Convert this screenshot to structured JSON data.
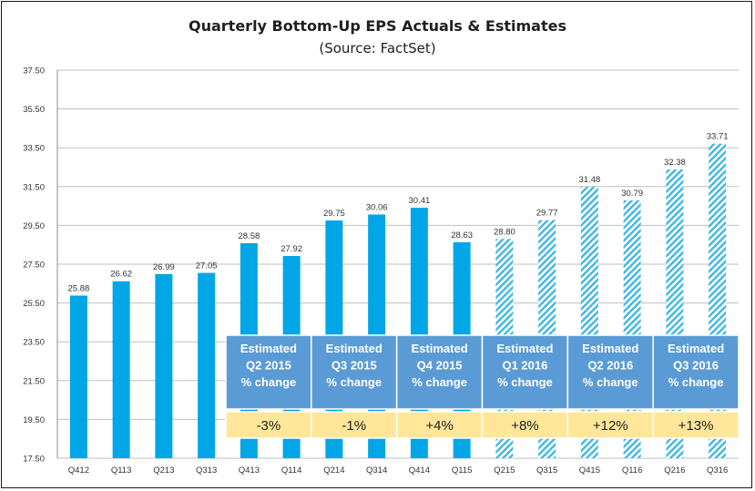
{
  "chart_data": {
    "type": "bar",
    "title": "Quarterly Bottom-Up EPS Actuals & Estimates",
    "subtitle": "(Source: FactSet)",
    "xlabel": "",
    "ylabel": "",
    "ylim": [
      17.5,
      37.5
    ],
    "yticks": [
      "17.50",
      "19.50",
      "21.50",
      "23.50",
      "25.50",
      "27.50",
      "29.50",
      "31.50",
      "33.50",
      "35.50",
      "37.50"
    ],
    "grid": "horizontal",
    "categories": [
      "Q412",
      "Q113",
      "Q213",
      "Q313",
      "Q413",
      "Q114",
      "Q214",
      "Q314",
      "Q414",
      "Q115",
      "Q215",
      "Q315",
      "Q415",
      "Q116",
      "Q216",
      "Q316"
    ],
    "series": [
      {
        "values": [
          25.88,
          26.62,
          26.99,
          27.05,
          28.58,
          27.92,
          29.75,
          30.06,
          30.41,
          28.63,
          28.8,
          29.77,
          31.48,
          30.79,
          32.38,
          33.71
        ],
        "labels": [
          "25.88",
          "26.62",
          "26.99",
          "27.05",
          "28.58",
          "27.92",
          "29.75",
          "30.06",
          "30.41",
          "28.63",
          "28.80",
          "29.77",
          "31.48",
          "30.79",
          "32.38",
          "33.71"
        ],
        "kind": [
          "actual",
          "actual",
          "actual",
          "actual",
          "actual",
          "actual",
          "actual",
          "actual",
          "actual",
          "actual",
          "estimate",
          "estimate",
          "estimate",
          "estimate",
          "estimate",
          "estimate"
        ]
      }
    ],
    "annotation_table": {
      "headers": [
        [
          "Estimated",
          "Q2 2015",
          "% change"
        ],
        [
          "Estimated",
          "Q3 2015",
          "% change"
        ],
        [
          "Estimated",
          "Q4 2015",
          "% change"
        ],
        [
          "Estimated",
          "Q1 2016",
          "% change"
        ],
        [
          "Estimated",
          "Q2 2016",
          "% change"
        ],
        [
          "Estimated",
          "Q3 2016",
          "% change"
        ]
      ],
      "values": [
        "-3%",
        "-1%",
        "+4%",
        "+8%",
        "+12%",
        "+13%"
      ]
    },
    "colors": {
      "actual": "#00a6e6",
      "estimate": "#3fb8e0",
      "table_header": "#5b9bd5",
      "table_value": "#ffe699",
      "grid": "#bfbfbf",
      "text": "#1f1f1f"
    }
  }
}
